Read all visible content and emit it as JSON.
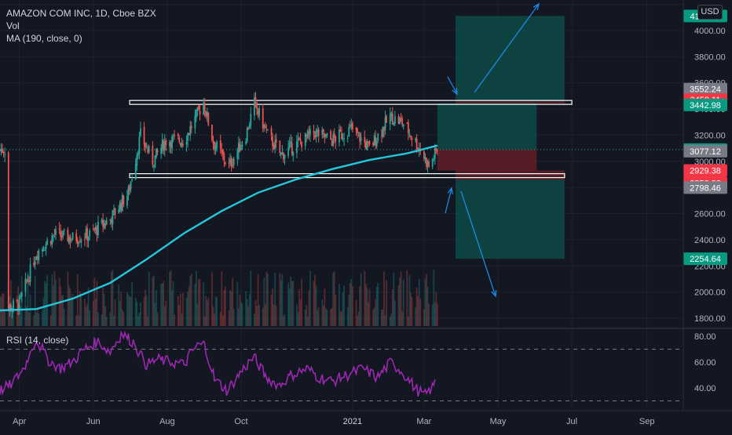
{
  "header": {
    "symbol_line": "AMAZON COM INC, 1D, Cboe BZX",
    "vol_label": "Vol",
    "ma_label": "MA (190, close, 0)",
    "rsi_label": "RSI (14, close)",
    "currency_badge": "USD"
  },
  "chart_data": [
    {
      "type": "candlestick",
      "title": "AMAZON COM INC, 1D, Cboe BZX",
      "price_axis_ticks": [
        "1800.00",
        "2000.00",
        "2200.00",
        "2400.00",
        "2600.00",
        "2800.00",
        "3000.00",
        "3200.00",
        "3400.00",
        "3600.00",
        "3800.00",
        "4000.00",
        "4200.00"
      ],
      "time_axis_ticks": [
        "Apr",
        "Jun",
        "Aug",
        "Oct",
        "2021",
        "Mar",
        "May",
        "Jul",
        "Sep"
      ],
      "ylim": [
        1750,
        4250
      ],
      "series": [
        {
          "name": "Close",
          "points": [
            [
              "2020-03-23",
              1880
            ],
            [
              "2020-04-01",
              1910
            ],
            [
              "2020-04-15",
              2300
            ],
            [
              "2020-04-30",
              2440
            ],
            [
              "2020-05-15",
              2410
            ],
            [
              "2020-05-29",
              2440
            ],
            [
              "2020-06-15",
              2560
            ],
            [
              "2020-06-30",
              2760
            ],
            [
              "2020-07-10",
              3200
            ],
            [
              "2020-07-20",
              3000
            ],
            [
              "2020-07-31",
              3160
            ],
            [
              "2020-08-15",
              3160
            ],
            [
              "2020-08-31",
              3450
            ],
            [
              "2020-09-08",
              3150
            ],
            [
              "2020-09-21",
              2960
            ],
            [
              "2020-10-05",
              3200
            ],
            [
              "2020-10-12",
              3440
            ],
            [
              "2020-10-23",
              3200
            ],
            [
              "2020-11-03",
              3050
            ],
            [
              "2020-11-16",
              3130
            ],
            [
              "2020-12-01",
              3220
            ],
            [
              "2020-12-15",
              3160
            ],
            [
              "2020-12-31",
              3250
            ],
            [
              "2021-01-15",
              3100
            ],
            [
              "2021-02-01",
              3340
            ],
            [
              "2021-02-12",
              3290
            ],
            [
              "2021-02-26",
              3090
            ],
            [
              "2021-03-05",
              2960
            ],
            [
              "2021-03-12",
              3089.49
            ]
          ]
        },
        {
          "name": "MA (190, close, 0)",
          "color": "#26c6da",
          "points": [
            [
              "2020-03-16",
              1860
            ],
            [
              "2020-04-15",
              1870
            ],
            [
              "2020-05-15",
              1950
            ],
            [
              "2020-06-15",
              2070
            ],
            [
              "2020-07-15",
              2250
            ],
            [
              "2020-08-15",
              2450
            ],
            [
              "2020-09-15",
              2620
            ],
            [
              "2020-10-15",
              2760
            ],
            [
              "2020-11-15",
              2860
            ],
            [
              "2020-12-15",
              2940
            ],
            [
              "2021-01-15",
              3010
            ],
            [
              "2021-02-15",
              3060
            ],
            [
              "2021-03-12",
              3120
            ]
          ]
        }
      ],
      "levels": [
        {
          "date_start": "2020-07-01",
          "date_end": "2021-07-01",
          "value": 3450,
          "label": "resistance"
        },
        {
          "date_start": "2020-07-01",
          "date_end": "2021-06-25",
          "value": 2890,
          "label": "support"
        }
      ],
      "position_boxes": [
        {
          "kind": "long",
          "entry": 3459.11,
          "stop": 3442.98,
          "target": 4110.99
        },
        {
          "kind": "short",
          "entry": 2929.38,
          "stop": 3089.49,
          "target": 2858.88
        },
        {
          "kind": "short",
          "entry": 2858.88,
          "stop": 2929.38,
          "target": 2254.64
        }
      ],
      "price_tags": [
        {
          "value": "4110.99",
          "price": 4110.99,
          "color": "#089981"
        },
        {
          "value": "3552.24",
          "price": 3552.24,
          "color": "#787b86"
        },
        {
          "value": "3459.11",
          "price": 3459.11,
          "color": "#f23645"
        },
        {
          "value": "3442.98",
          "price": 3442.98,
          "color": "#089981"
        },
        {
          "value": "3089.49",
          "price": 3089.49,
          "color": "#089981"
        },
        {
          "value": "3077.12",
          "price": 3077.12,
          "color": "#787b86"
        },
        {
          "value": "2929.38",
          "price": 2929.38,
          "color": "#f23645"
        },
        {
          "value": "2858.88",
          "price": 2858.88,
          "color": "#f23645"
        },
        {
          "value": "2798.46",
          "price": 2798.46,
          "color": "#787b86"
        },
        {
          "value": "2254.64",
          "price": 2254.64,
          "color": "#089981"
        }
      ]
    },
    {
      "type": "line",
      "title": "RSI (14, close)",
      "ylim": [
        25,
        85
      ],
      "y_ticks": [
        "80.00",
        "60.00",
        "40.00"
      ],
      "guide_levels": [
        70,
        30
      ],
      "series": [
        {
          "name": "RSI",
          "color": "#9c27b0",
          "points": [
            [
              "2020-03-16",
              38
            ],
            [
              "2020-03-25",
              42
            ],
            [
              "2020-04-05",
              55
            ],
            [
              "2020-04-15",
              78
            ],
            [
              "2020-04-25",
              62
            ],
            [
              "2020-05-05",
              55
            ],
            [
              "2020-05-15",
              60
            ],
            [
              "2020-05-25",
              70
            ],
            [
              "2020-06-05",
              76
            ],
            [
              "2020-06-15",
              68
            ],
            [
              "2020-06-25",
              82
            ],
            [
              "2020-07-05",
              75
            ],
            [
              "2020-07-15",
              58
            ],
            [
              "2020-07-25",
              62
            ],
            [
              "2020-08-05",
              60
            ],
            [
              "2020-08-15",
              58
            ],
            [
              "2020-08-25",
              72
            ],
            [
              "2020-09-01",
              74
            ],
            [
              "2020-09-10",
              46
            ],
            [
              "2020-09-20",
              38
            ],
            [
              "2020-10-01",
              52
            ],
            [
              "2020-10-12",
              64
            ],
            [
              "2020-10-22",
              48
            ],
            [
              "2020-11-02",
              42
            ],
            [
              "2020-11-12",
              50
            ],
            [
              "2020-11-25",
              55
            ],
            [
              "2020-12-05",
              48
            ],
            [
              "2020-12-15",
              45
            ],
            [
              "2020-12-28",
              50
            ],
            [
              "2021-01-10",
              55
            ],
            [
              "2021-01-22",
              48
            ],
            [
              "2021-02-02",
              60
            ],
            [
              "2021-02-12",
              52
            ],
            [
              "2021-02-22",
              40
            ],
            [
              "2021-03-02",
              34
            ],
            [
              "2021-03-08",
              40
            ],
            [
              "2021-03-12",
              46
            ]
          ]
        }
      ]
    }
  ]
}
